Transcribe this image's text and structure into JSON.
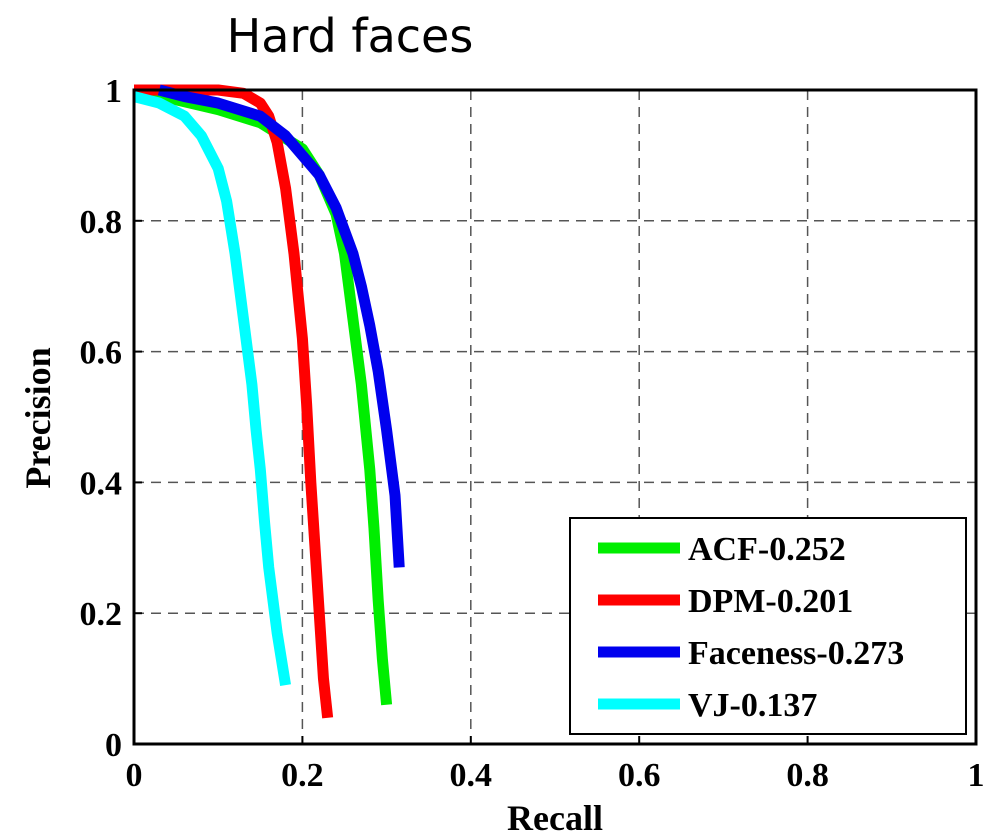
{
  "chart_data": {
    "type": "line",
    "title": "Hard faces",
    "xlabel": "Recall",
    "ylabel": "Precision",
    "xlim": [
      0,
      1
    ],
    "ylim": [
      0,
      1
    ],
    "xticks": [
      0,
      0.2,
      0.4,
      0.6,
      0.8,
      1
    ],
    "yticks": [
      0,
      0.2,
      0.4,
      0.6,
      0.8,
      1
    ],
    "xtick_labels": [
      "0",
      "0.2",
      "0.4",
      "0.6",
      "0.8",
      "1"
    ],
    "ytick_labels": [
      "0",
      "0.2",
      "0.4",
      "0.6",
      "0.8",
      "1"
    ],
    "grid": true,
    "legend_position": "bottom-right",
    "series": [
      {
        "name": "ACF-0.252",
        "color": "#00ee00",
        "x": [
          0,
          0.05,
          0.1,
          0.15,
          0.2,
          0.22,
          0.24,
          0.25,
          0.26,
          0.27,
          0.28,
          0.285,
          0.29,
          0.295,
          0.3
        ],
        "y": [
          0.99,
          0.985,
          0.97,
          0.95,
          0.91,
          0.87,
          0.81,
          0.75,
          0.65,
          0.55,
          0.42,
          0.33,
          0.22,
          0.13,
          0.06
        ]
      },
      {
        "name": "DPM-0.201",
        "color": "#ff0000",
        "x": [
          0,
          0.05,
          0.1,
          0.13,
          0.15,
          0.16,
          0.17,
          0.18,
          0.19,
          0.2,
          0.205,
          0.21,
          0.215,
          0.22,
          0.225,
          0.23
        ],
        "y": [
          1.0,
          1.0,
          1.0,
          0.995,
          0.98,
          0.96,
          0.92,
          0.85,
          0.75,
          0.62,
          0.52,
          0.4,
          0.3,
          0.2,
          0.1,
          0.04
        ]
      },
      {
        "name": "Faceness-0.273",
        "color": "#0000ee",
        "x": [
          0.03,
          0.06,
          0.1,
          0.15,
          0.18,
          0.2,
          0.22,
          0.24,
          0.26,
          0.27,
          0.28,
          0.29,
          0.3,
          0.31,
          0.315
        ],
        "y": [
          1.0,
          0.99,
          0.98,
          0.96,
          0.93,
          0.9,
          0.87,
          0.82,
          0.75,
          0.7,
          0.64,
          0.57,
          0.48,
          0.38,
          0.27
        ]
      },
      {
        "name": "VJ-0.137",
        "color": "#00ffff",
        "x": [
          0,
          0.03,
          0.06,
          0.08,
          0.1,
          0.11,
          0.12,
          0.13,
          0.14,
          0.145,
          0.15,
          0.155,
          0.16,
          0.165,
          0.17,
          0.175,
          0.18
        ],
        "y": [
          0.99,
          0.98,
          0.96,
          0.93,
          0.88,
          0.83,
          0.75,
          0.65,
          0.55,
          0.48,
          0.42,
          0.34,
          0.27,
          0.22,
          0.17,
          0.13,
          0.09
        ]
      }
    ]
  }
}
